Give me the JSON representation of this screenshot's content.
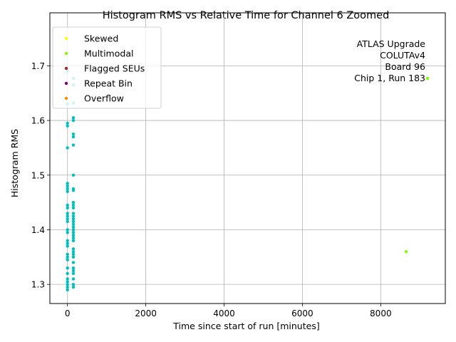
{
  "chart_data": {
    "type": "scatter",
    "title": "Histogram RMS vs Relative Time for Channel 6 Zoomed",
    "xlabel": "Time since start of run [minutes]",
    "ylabel": "Histogram RMS",
    "xlim": [
      -450,
      9650
    ],
    "ylim": [
      1.265,
      1.797
    ],
    "xticks": [
      0,
      2000,
      4000,
      6000,
      8000
    ],
    "yticks": [
      1.3,
      1.4,
      1.5,
      1.6,
      1.7
    ],
    "grid": true,
    "legend_position": "top-left",
    "annotation": [
      "ATLAS Upgrade",
      "COLUTAv4",
      "Board 96",
      "Chip 1, Run 183"
    ],
    "legend": [
      {
        "name": "Skewed",
        "color": "#ffff00"
      },
      {
        "name": "Multimodal",
        "color": "#7fff00"
      },
      {
        "name": "Flagged SEUs",
        "color": "#b22222"
      },
      {
        "name": "Repeat Bin",
        "color": "#800080"
      },
      {
        "name": "Overflow",
        "color": "#ff8c00"
      }
    ],
    "series": [
      {
        "color": "#00bfbf",
        "points": [
          [
            0,
            1.29
          ],
          [
            0,
            1.295
          ],
          [
            0,
            1.3
          ],
          [
            0,
            1.305
          ],
          [
            0,
            1.31
          ],
          [
            0,
            1.32
          ],
          [
            0,
            1.33
          ],
          [
            0,
            1.345
          ],
          [
            0,
            1.35
          ],
          [
            0,
            1.355
          ],
          [
            0,
            1.37
          ],
          [
            0,
            1.375
          ],
          [
            0,
            1.38
          ],
          [
            0,
            1.395
          ],
          [
            0,
            1.4
          ],
          [
            0,
            1.415
          ],
          [
            0,
            1.42
          ],
          [
            0,
            1.425
          ],
          [
            0,
            1.43
          ],
          [
            0,
            1.44
          ],
          [
            0,
            1.445
          ],
          [
            0,
            1.47
          ],
          [
            0,
            1.475
          ],
          [
            0,
            1.48
          ],
          [
            0,
            1.485
          ],
          [
            0,
            1.55
          ],
          [
            0,
            1.59
          ],
          [
            0,
            1.595
          ],
          [
            0,
            1.63
          ],
          [
            0,
            1.69
          ],
          [
            150,
            1.295
          ],
          [
            150,
            1.3
          ],
          [
            150,
            1.31
          ],
          [
            150,
            1.32
          ],
          [
            150,
            1.325
          ],
          [
            150,
            1.33
          ],
          [
            150,
            1.34
          ],
          [
            150,
            1.35
          ],
          [
            150,
            1.355
          ],
          [
            150,
            1.36
          ],
          [
            150,
            1.365
          ],
          [
            150,
            1.38
          ],
          [
            150,
            1.385
          ],
          [
            150,
            1.39
          ],
          [
            150,
            1.395
          ],
          [
            150,
            1.4
          ],
          [
            150,
            1.405
          ],
          [
            150,
            1.41
          ],
          [
            150,
            1.415
          ],
          [
            150,
            1.42
          ],
          [
            150,
            1.425
          ],
          [
            150,
            1.43
          ],
          [
            150,
            1.44
          ],
          [
            150,
            1.445
          ],
          [
            150,
            1.45
          ],
          [
            150,
            1.472
          ],
          [
            150,
            1.475
          ],
          [
            150,
            1.5
          ],
          [
            150,
            1.555
          ],
          [
            150,
            1.57
          ],
          [
            150,
            1.575
          ],
          [
            150,
            1.6
          ],
          [
            150,
            1.605
          ],
          [
            150,
            1.632
          ],
          [
            150,
            1.665
          ],
          [
            150,
            1.677
          ]
        ]
      },
      {
        "name": "Multimodal",
        "color": "#7fff00",
        "points": [
          [
            8650,
            1.36
          ],
          [
            9200,
            1.677
          ]
        ]
      }
    ]
  }
}
